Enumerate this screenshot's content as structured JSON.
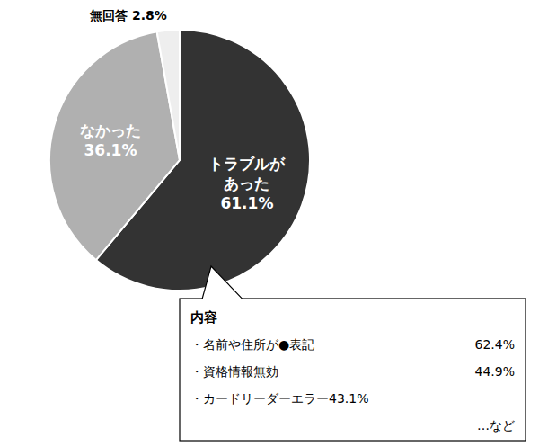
{
  "chart_data": {
    "type": "pie",
    "categories": [
      "トラブルが\nあった",
      "なかった",
      "無回答"
    ],
    "values": [
      61.1,
      36.1,
      2.8
    ],
    "value_labels": [
      "61.1%",
      "36.1%",
      "2.8%"
    ],
    "colors": [
      "#333333",
      "#b0b0b0",
      "#eeeeee"
    ],
    "data_labels": true,
    "annotations": [
      {
        "title": "内容",
        "lines": [
          {
            "text": "・名前や住所が●表記",
            "label": "62.4%"
          },
          {
            "text": "・資格情報無効",
            "label": "44.9%"
          },
          {
            "text": "・カードリーダーエラー43.1%"
          },
          {
            "text": "…など"
          }
        ]
      }
    ]
  }
}
